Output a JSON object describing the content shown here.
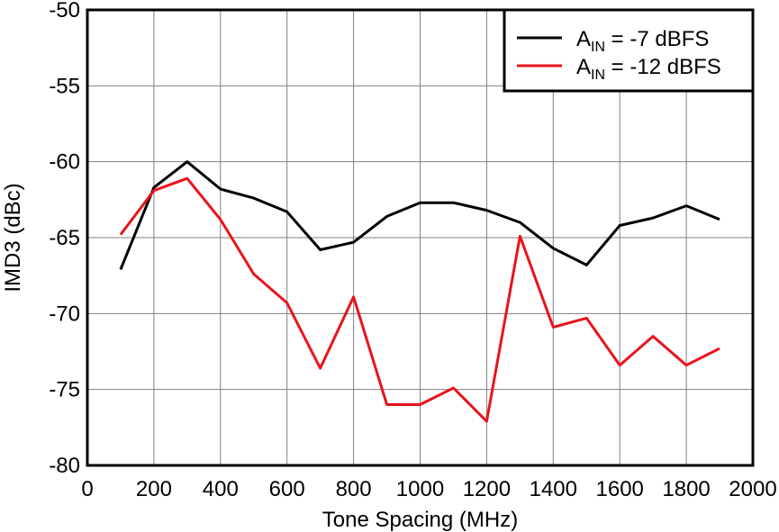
{
  "chart_data": {
    "type": "line",
    "title": "",
    "xlabel": "Tone Spacing (MHz)",
    "ylabel": "IMD3 (dBc)",
    "xlim": [
      0,
      2000
    ],
    "ylim": [
      -80,
      -50
    ],
    "x_ticks": [
      0,
      200,
      400,
      600,
      800,
      1000,
      1200,
      1400,
      1600,
      1800,
      2000
    ],
    "y_ticks": [
      -80,
      -75,
      -70,
      -65,
      -60,
      -55,
      -50
    ],
    "grid": true,
    "legend_position": "top-right",
    "series": [
      {
        "name_main": "A",
        "name_sub": "IN",
        "name_rest": " = -7 dBFS",
        "color": "#000000",
        "x": [
          100,
          200,
          300,
          400,
          500,
          600,
          700,
          800,
          900,
          1000,
          1100,
          1200,
          1300,
          1400,
          1500,
          1600,
          1700,
          1800,
          1900
        ],
        "values": [
          -67.1,
          -61.7,
          -60.0,
          -61.8,
          -62.4,
          -63.3,
          -65.8,
          -65.3,
          -63.6,
          -62.7,
          -62.7,
          -63.2,
          -64.0,
          -65.7,
          -66.8,
          -64.2,
          -63.7,
          -62.9,
          -63.8
        ]
      },
      {
        "name_main": "A",
        "name_sub": "IN",
        "name_rest": " = -12 dBFS",
        "color": "#e8141c",
        "x": [
          100,
          200,
          300,
          400,
          500,
          600,
          700,
          800,
          900,
          1000,
          1100,
          1200,
          1300,
          1400,
          1500,
          1600,
          1700,
          1800,
          1900
        ],
        "values": [
          -64.8,
          -61.9,
          -61.1,
          -63.8,
          -67.4,
          -69.3,
          -73.6,
          -68.9,
          -76.0,
          -76.0,
          -74.9,
          -77.1,
          -64.9,
          -70.9,
          -70.3,
          -73.4,
          -71.5,
          -73.4,
          -72.3
        ]
      }
    ]
  }
}
